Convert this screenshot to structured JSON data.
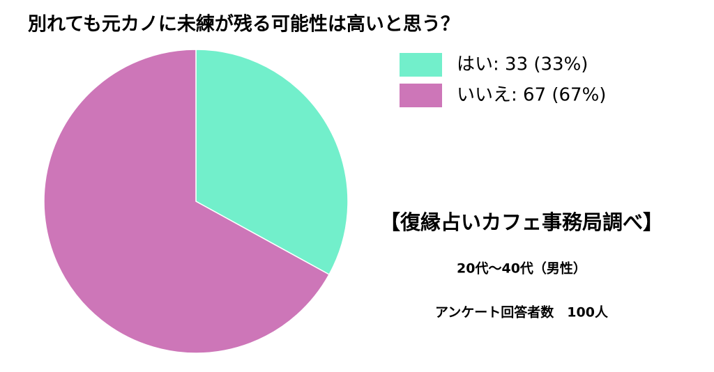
{
  "chart_data": {
    "type": "pie",
    "title": "別れても元カノに未練が残る可能性は高いと思う？",
    "categories": [
      "はい: 33 (33%)",
      "いいえ: 67 (67%)"
    ],
    "values": [
      33,
      67
    ],
    "colors": [
      "#72efcb",
      "#cd76b8"
    ],
    "annotations": [
      "【復縁占いカフェ事務局調べ】",
      "20代〜40代（男性）",
      "アンケート回答者数　100人"
    ]
  }
}
